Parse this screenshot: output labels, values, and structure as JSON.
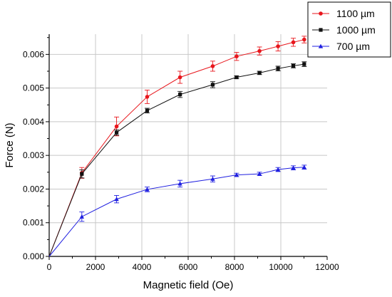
{
  "chart_data": {
    "type": "line",
    "xlabel": "Magnetic field (Oe)",
    "ylabel": "Force (N)",
    "xlim": [
      0,
      12000
    ],
    "ylim": [
      0,
      0.0066
    ],
    "x_ticks": [
      0,
      2000,
      4000,
      6000,
      8000,
      10000,
      12000
    ],
    "y_ticks": [
      0.0,
      0.001,
      0.002,
      0.003,
      0.004,
      0.005,
      0.006
    ],
    "x_tick_labels": [
      "0",
      "2000",
      "4000",
      "6000",
      "8000",
      "10000",
      "12000"
    ],
    "y_tick_labels": [
      "0.000",
      "0.001",
      "0.002",
      "0.003",
      "0.004",
      "0.005",
      "0.006"
    ],
    "grid": true,
    "legend_position": "top-right",
    "series": [
      {
        "name": "1100 µm",
        "color": "#e8161c",
        "marker": "circle",
        "x": [
          0,
          1410,
          2910,
          4230,
          5650,
          7060,
          8090,
          9080,
          9880,
          10540,
          11010
        ],
        "y": [
          0,
          0.00248,
          0.00386,
          0.00474,
          0.00532,
          0.00565,
          0.00594,
          0.0061,
          0.00624,
          0.00636,
          0.00644
        ],
        "err": [
          0,
          0.00016,
          0.00028,
          0.0002,
          0.00018,
          0.00015,
          0.00012,
          0.00012,
          0.00014,
          0.00012,
          0.0001
        ]
      },
      {
        "name": "1000 µm",
        "color": "#111111",
        "marker": "square",
        "x": [
          0,
          1410,
          2910,
          4230,
          5650,
          7060,
          8090,
          9080,
          9880,
          10540,
          11010
        ],
        "y": [
          0,
          0.00245,
          0.00368,
          0.00433,
          0.00481,
          0.0051,
          0.00532,
          0.00545,
          0.00558,
          0.00566,
          0.00571
        ],
        "err": [
          0,
          0.00012,
          8e-05,
          7e-05,
          9e-05,
          9e-05,
          4e-05,
          5e-05,
          7e-05,
          6e-05,
          7e-05
        ]
      },
      {
        "name": "700 µm",
        "color": "#1f1fe0",
        "marker": "triangle",
        "x": [
          0,
          1410,
          2910,
          4230,
          5650,
          7060,
          8090,
          9080,
          9880,
          10540,
          11010
        ],
        "y": [
          0,
          0.00118,
          0.0017,
          0.00199,
          0.00216,
          0.0023,
          0.00242,
          0.00245,
          0.00258,
          0.00263,
          0.00265
        ],
        "err": [
          0,
          0.00014,
          0.00011,
          7e-05,
          0.0001,
          9e-05,
          5e-05,
          5e-05,
          6e-05,
          6e-05,
          6e-05
        ]
      }
    ]
  }
}
